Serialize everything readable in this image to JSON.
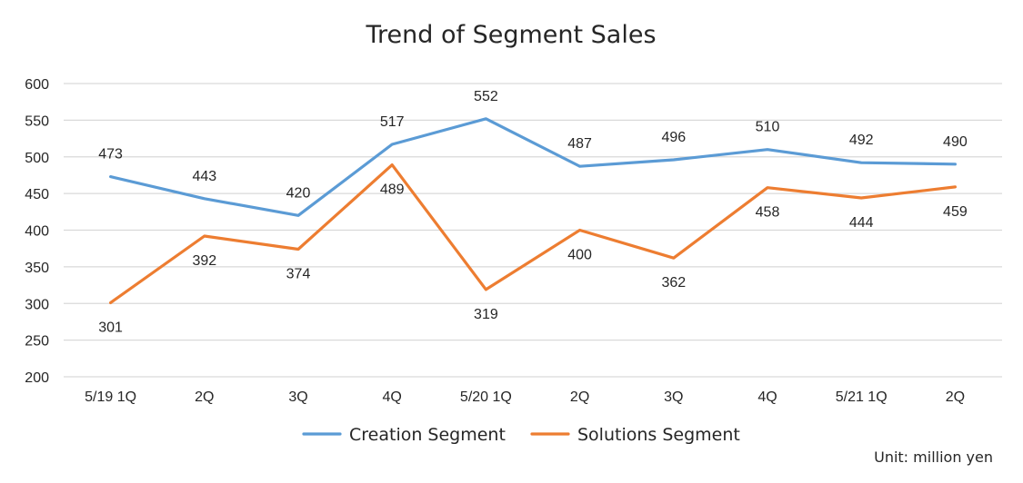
{
  "chart_data": {
    "type": "line",
    "title": "Trend of Segment Sales",
    "categories": [
      "5/19 1Q",
      "2Q",
      "3Q",
      "4Q",
      "5/20 1Q",
      "2Q",
      "3Q",
      "4Q",
      "5/21 1Q",
      "2Q"
    ],
    "series": [
      {
        "name": "Creation Segment",
        "color": "#5b9bd5",
        "values": [
          473,
          443,
          420,
          517,
          552,
          487,
          496,
          510,
          492,
          490
        ],
        "label_position": "above"
      },
      {
        "name": "Solutions Segment",
        "color": "#ed7d31",
        "values": [
          301,
          392,
          374,
          489,
          319,
          400,
          362,
          458,
          444,
          459
        ],
        "label_position": "below"
      }
    ],
    "ylim": [
      200,
      600
    ],
    "yticks": [
      200,
      250,
      300,
      350,
      400,
      450,
      500,
      550,
      600
    ],
    "grid": true,
    "legend_position": "bottom",
    "unit_note": "Unit: million yen",
    "xlabel": "",
    "ylabel": ""
  }
}
